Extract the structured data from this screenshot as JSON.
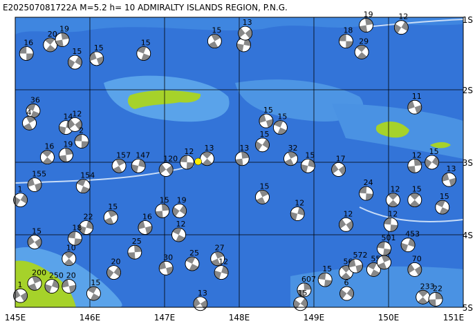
{
  "map": {
    "title": "E202507081722A M=5.2 h= 10 ADMIRALTY ISLANDS REGION, P.N.G.",
    "xlim": [
      145,
      151
    ],
    "ylim": [
      1,
      5
    ],
    "xticks": [
      {
        "value": 145,
        "label": "145E"
      },
      {
        "value": 146,
        "label": "146E"
      },
      {
        "value": 147,
        "label": "147E"
      },
      {
        "value": 148,
        "label": "148E"
      },
      {
        "value": 149,
        "label": "149E"
      },
      {
        "value": 150,
        "label": "150E"
      },
      {
        "value": 151,
        "label": "151E"
      }
    ],
    "yticks": [
      {
        "value": 1,
        "label": "1S"
      },
      {
        "value": 2,
        "label": "2S"
      },
      {
        "value": 3,
        "label": "3S"
      },
      {
        "value": 4,
        "label": "4S"
      },
      {
        "value": 5,
        "label": "5S"
      }
    ],
    "epicenter": {
      "lon": 147.45,
      "lat": 2.99
    },
    "events": [
      {
        "lon": 145.15,
        "lat": 1.5,
        "label": "16"
      },
      {
        "lon": 145.47,
        "lat": 1.38,
        "label": "20"
      },
      {
        "lon": 145.63,
        "lat": 1.31,
        "label": "19"
      },
      {
        "lon": 145.8,
        "lat": 1.62,
        "label": "15"
      },
      {
        "lon": 146.09,
        "lat": 1.57,
        "label": "15"
      },
      {
        "lon": 146.72,
        "lat": 1.5,
        "label": "15"
      },
      {
        "lon": 147.67,
        "lat": 1.33,
        "label": "15"
      },
      {
        "lon": 148.06,
        "lat": 1.38,
        "label": "14"
      },
      {
        "lon": 148.08,
        "lat": 1.22,
        "label": "13"
      },
      {
        "lon": 149.43,
        "lat": 1.33,
        "label": "18"
      },
      {
        "lon": 149.64,
        "lat": 1.48,
        "label": "29"
      },
      {
        "lon": 149.7,
        "lat": 1.11,
        "label": "19"
      },
      {
        "lon": 150.17,
        "lat": 1.14,
        "label": "12"
      },
      {
        "lon": 150.35,
        "lat": 2.24,
        "label": "11"
      },
      {
        "lon": 145.24,
        "lat": 2.29,
        "label": "36"
      },
      {
        "lon": 145.19,
        "lat": 2.46,
        "label": "4"
      },
      {
        "lon": 145.68,
        "lat": 2.52,
        "label": "14"
      },
      {
        "lon": 145.8,
        "lat": 2.48,
        "label": "12"
      },
      {
        "lon": 145.89,
        "lat": 2.71,
        "label": "2"
      },
      {
        "lon": 145.43,
        "lat": 2.93,
        "label": "16"
      },
      {
        "lon": 145.68,
        "lat": 2.9,
        "label": "19"
      },
      {
        "lon": 145.07,
        "lat": 3.52,
        "label": "1"
      },
      {
        "lon": 145.26,
        "lat": 3.31,
        "label": "155"
      },
      {
        "lon": 145.91,
        "lat": 3.33,
        "label": "154"
      },
      {
        "lon": 146.39,
        "lat": 3.05,
        "label": "157"
      },
      {
        "lon": 146.65,
        "lat": 3.05,
        "label": "147"
      },
      {
        "lon": 147.02,
        "lat": 3.1,
        "label": "120"
      },
      {
        "lon": 147.3,
        "lat": 3.0,
        "label": "12"
      },
      {
        "lon": 147.57,
        "lat": 2.95,
        "label": "13"
      },
      {
        "lon": 148.04,
        "lat": 2.95,
        "label": "13"
      },
      {
        "lon": 148.31,
        "lat": 2.76,
        "label": "15"
      },
      {
        "lon": 148.36,
        "lat": 2.43,
        "label": "15"
      },
      {
        "lon": 148.55,
        "lat": 2.52,
        "label": "15"
      },
      {
        "lon": 148.69,
        "lat": 2.95,
        "label": "32"
      },
      {
        "lon": 148.92,
        "lat": 3.05,
        "label": "15"
      },
      {
        "lon": 149.33,
        "lat": 3.1,
        "label": "17"
      },
      {
        "lon": 149.7,
        "lat": 3.43,
        "label": "24"
      },
      {
        "lon": 150.06,
        "lat": 3.52,
        "label": "12"
      },
      {
        "lon": 150.35,
        "lat": 3.05,
        "label": "12"
      },
      {
        "lon": 150.58,
        "lat": 3.0,
        "label": "15"
      },
      {
        "lon": 150.81,
        "lat": 3.24,
        "label": "13"
      },
      {
        "lon": 150.72,
        "lat": 3.62,
        "label": "15"
      },
      {
        "lon": 148.31,
        "lat": 3.48,
        "label": "15"
      },
      {
        "lon": 148.78,
        "lat": 3.71,
        "label": "12"
      },
      {
        "lon": 149.43,
        "lat": 3.86,
        "label": "12"
      },
      {
        "lon": 150.03,
        "lat": 3.86,
        "label": "12"
      },
      {
        "lon": 150.35,
        "lat": 3.52,
        "label": "15"
      },
      {
        "lon": 146.97,
        "lat": 3.67,
        "label": "15"
      },
      {
        "lon": 147.2,
        "lat": 3.67,
        "label": "19"
      },
      {
        "lon": 146.74,
        "lat": 3.9,
        "label": "16"
      },
      {
        "lon": 147.19,
        "lat": 4.0,
        "label": "12"
      },
      {
        "lon": 146.28,
        "lat": 3.76,
        "label": "15"
      },
      {
        "lon": 145.95,
        "lat": 3.9,
        "label": "22"
      },
      {
        "lon": 145.26,
        "lat": 4.1,
        "label": "15"
      },
      {
        "lon": 145.8,
        "lat": 4.05,
        "label": "18"
      },
      {
        "lon": 145.72,
        "lat": 4.33,
        "label": "10"
      },
      {
        "lon": 146.6,
        "lat": 4.24,
        "label": "25"
      },
      {
        "lon": 146.32,
        "lat": 4.52,
        "label": "20"
      },
      {
        "lon": 147.02,
        "lat": 4.46,
        "label": "30"
      },
      {
        "lon": 147.37,
        "lat": 4.4,
        "label": "25"
      },
      {
        "lon": 147.71,
        "lat": 4.33,
        "label": "27"
      },
      {
        "lon": 147.76,
        "lat": 4.52,
        "label": "12"
      },
      {
        "lon": 147.48,
        "lat": 4.95,
        "label": "13"
      },
      {
        "lon": 149.15,
        "lat": 4.62,
        "label": "15"
      },
      {
        "lon": 149.43,
        "lat": 4.52,
        "label": "56"
      },
      {
        "lon": 148.87,
        "lat": 4.76,
        "label": "607"
      },
      {
        "lon": 148.82,
        "lat": 4.95,
        "label": "15"
      },
      {
        "lon": 149.56,
        "lat": 4.43,
        "label": "572"
      },
      {
        "lon": 149.8,
        "lat": 4.48,
        "label": "55"
      },
      {
        "lon": 149.94,
        "lat": 4.38,
        "label": "96"
      },
      {
        "lon": 150.26,
        "lat": 4.14,
        "label": "453"
      },
      {
        "lon": 150.35,
        "lat": 4.48,
        "label": "70"
      },
      {
        "lon": 149.94,
        "lat": 4.19,
        "label": "501"
      },
      {
        "lon": 150.46,
        "lat": 4.86,
        "label": "233"
      },
      {
        "lon": 150.63,
        "lat": 4.89,
        "label": "22"
      },
      {
        "lon": 149.44,
        "lat": 4.81,
        "label": "6"
      },
      {
        "lon": 145.72,
        "lat": 4.71,
        "label": "20"
      },
      {
        "lon": 146.05,
        "lat": 4.81,
        "label": "15"
      },
      {
        "lon": 145.26,
        "lat": 4.67,
        "label": "200"
      },
      {
        "lon": 145.49,
        "lat": 4.71,
        "label": "250"
      },
      {
        "lon": 145.07,
        "lat": 4.84,
        "label": "1"
      }
    ]
  }
}
